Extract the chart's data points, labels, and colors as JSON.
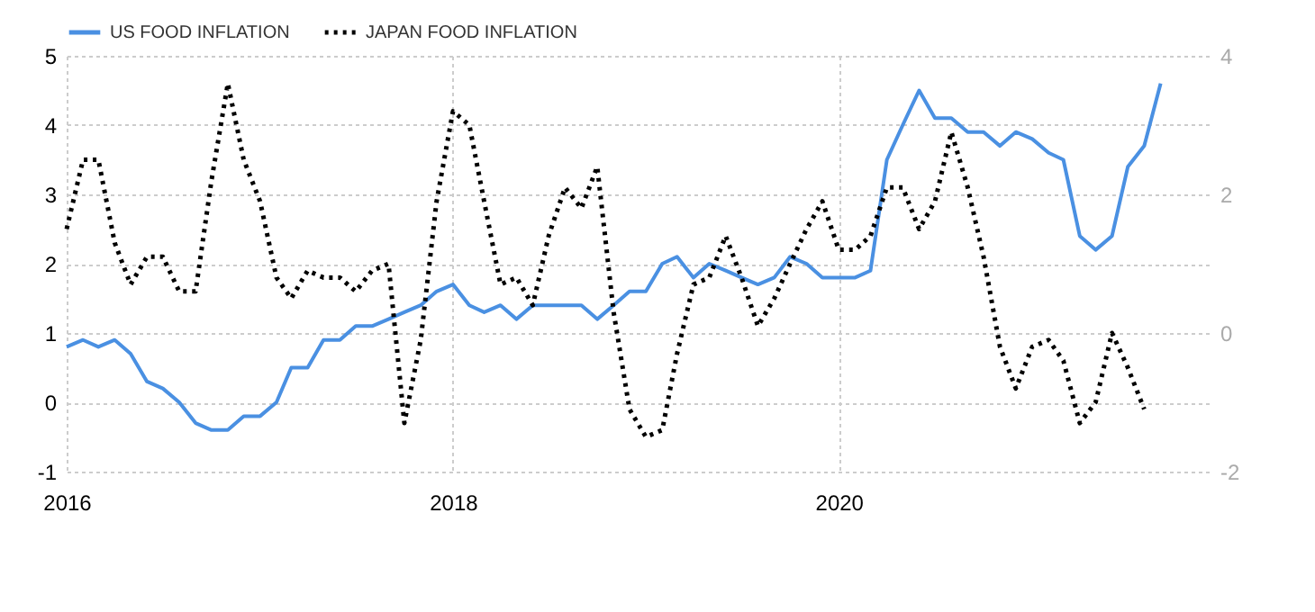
{
  "chart_data": {
    "type": "line",
    "x": [
      "2016-01",
      "2016-02",
      "2016-03",
      "2016-04",
      "2016-05",
      "2016-06",
      "2016-07",
      "2016-08",
      "2016-09",
      "2016-10",
      "2016-11",
      "2016-12",
      "2017-01",
      "2017-02",
      "2017-03",
      "2017-04",
      "2017-05",
      "2017-06",
      "2017-07",
      "2017-08",
      "2017-09",
      "2017-10",
      "2017-11",
      "2017-12",
      "2018-01",
      "2018-02",
      "2018-03",
      "2018-04",
      "2018-05",
      "2018-06",
      "2018-07",
      "2018-08",
      "2018-09",
      "2018-10",
      "2018-11",
      "2018-12",
      "2019-01",
      "2019-02",
      "2019-03",
      "2019-04",
      "2019-05",
      "2019-06",
      "2019-07",
      "2019-08",
      "2019-09",
      "2019-10",
      "2019-11",
      "2019-12",
      "2020-01",
      "2020-02",
      "2020-03",
      "2020-04",
      "2020-05",
      "2020-06",
      "2020-07",
      "2020-08",
      "2020-09",
      "2020-10",
      "2020-11",
      "2020-12",
      "2021-01",
      "2021-02",
      "2021-03",
      "2021-04",
      "2021-05",
      "2021-06",
      "2021-07",
      "2021-08",
      "2021-09"
    ],
    "series": [
      {
        "name": "US FOOD INFLATION",
        "color": "#4a90e2",
        "line_style": "solid",
        "values": [
          0.8,
          0.9,
          0.8,
          0.9,
          0.7,
          0.3,
          0.2,
          0.0,
          -0.3,
          -0.4,
          -0.4,
          -0.2,
          -0.2,
          0.0,
          0.5,
          0.5,
          0.9,
          0.9,
          1.1,
          1.1,
          1.2,
          1.3,
          1.4,
          1.6,
          1.7,
          1.4,
          1.3,
          1.4,
          1.2,
          1.4,
          1.4,
          1.4,
          1.4,
          1.2,
          1.4,
          1.6,
          1.6,
          2.0,
          2.1,
          1.8,
          2.0,
          1.9,
          1.8,
          1.7,
          1.8,
          2.1,
          2.0,
          1.8,
          1.8,
          1.8,
          1.9,
          3.5,
          4.0,
          4.5,
          4.1,
          4.1,
          3.9,
          3.9,
          3.7,
          3.9,
          3.8,
          3.6,
          3.5,
          2.4,
          2.2,
          2.4,
          3.4,
          3.7,
          4.6
        ]
      },
      {
        "name": "JAPAN FOOD INFLATION",
        "color": "#000000",
        "line_style": "dotted",
        "axis": "y2",
        "values": [
          1.5,
          2.5,
          2.5,
          1.3,
          0.7,
          1.1,
          1.1,
          0.6,
          0.6,
          2.2,
          3.6,
          2.5,
          1.9,
          0.8,
          0.5,
          0.9,
          0.8,
          0.8,
          0.6,
          0.9,
          1.0,
          -1.3,
          -0.1,
          1.9,
          3.2,
          3.0,
          1.9,
          0.7,
          0.8,
          0.4,
          1.4,
          2.1,
          1.8,
          2.4,
          0.3,
          -1.1,
          -1.5,
          -1.4,
          -0.3,
          0.7,
          0.8,
          1.4,
          0.8,
          0.1,
          0.5,
          1.0,
          1.5,
          1.9,
          1.2,
          1.2,
          1.4,
          2.1,
          2.1,
          1.5,
          1.9,
          2.9,
          2.1,
          1.1,
          -0.2,
          -0.8,
          -0.2,
          -0.1,
          -0.4,
          -1.3,
          -1.0,
          0.0,
          -0.5,
          -1.1,
          null
        ]
      }
    ],
    "xlim": [
      "2016-01",
      "2021-12"
    ],
    "xticks": [
      "2016",
      "2018",
      "2020"
    ],
    "ylim": [
      -1,
      5
    ],
    "yticks": [
      -1,
      0,
      1,
      2,
      3,
      4,
      5
    ],
    "y2lim": [
      -2,
      4
    ],
    "y2ticks": [
      -2,
      0,
      2,
      4
    ],
    "grid": true,
    "legend": "top left"
  }
}
